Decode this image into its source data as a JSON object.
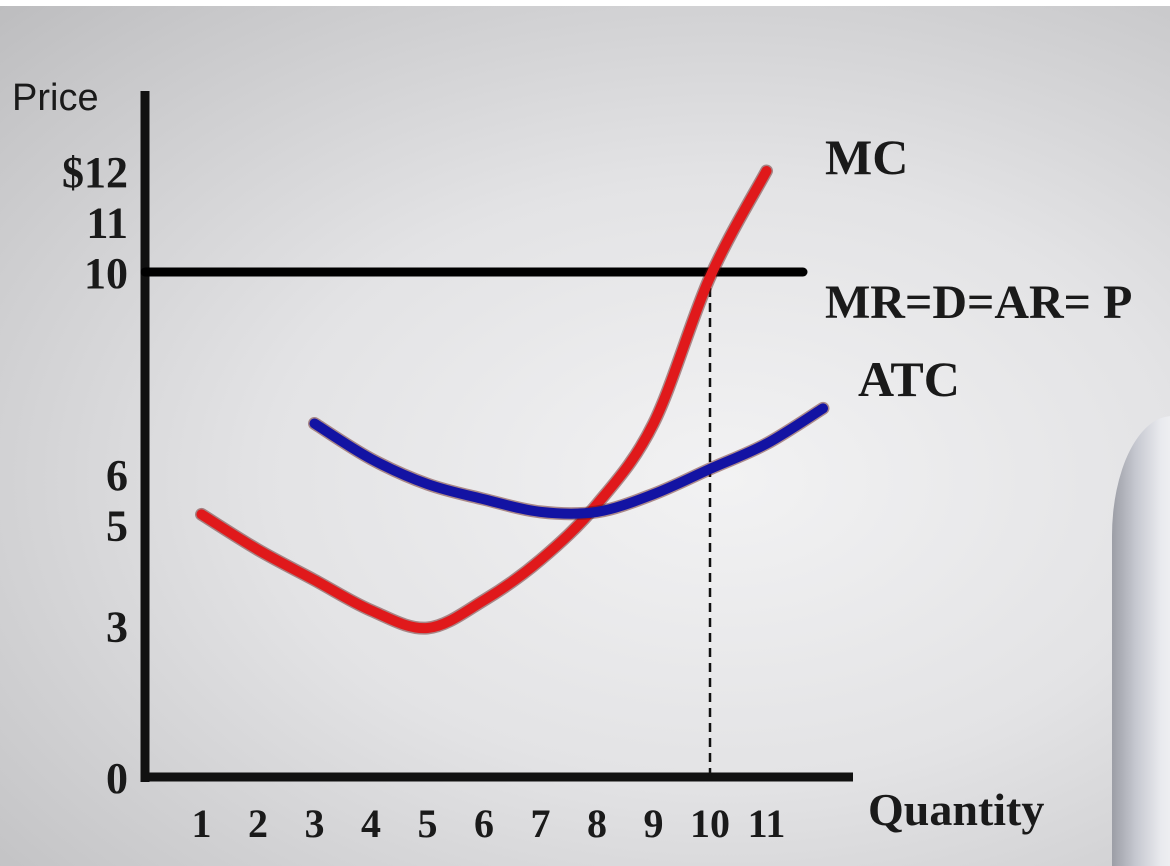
{
  "chart_data": {
    "type": "line",
    "ylabel": "Price",
    "xlabel": "Quantity",
    "x_ticks": [
      "1",
      "2",
      "3",
      "4",
      "5",
      "6",
      "7",
      "8",
      "9",
      "10",
      "11"
    ],
    "y_ticks": [
      {
        "value": 0,
        "label": "0"
      },
      {
        "value": 3,
        "label": "3"
      },
      {
        "value": 5,
        "label": "5"
      },
      {
        "value": 6,
        "label": "6"
      },
      {
        "value": 10,
        "label": "10"
      },
      {
        "value": 11,
        "label": "11"
      },
      {
        "value": 12,
        "label": "$12"
      }
    ],
    "series": [
      {
        "name": "MC",
        "color": "#e0191b",
        "points": [
          [
            1,
            5.2
          ],
          [
            2,
            4.5
          ],
          [
            3,
            3.9
          ],
          [
            4,
            3.3
          ],
          [
            5,
            2.95
          ],
          [
            6,
            3.5
          ],
          [
            7,
            4.3
          ],
          [
            8,
            5.4
          ],
          [
            9,
            7.0
          ],
          [
            10,
            9.9
          ],
          [
            11,
            12.0
          ]
        ]
      },
      {
        "name": "ATC",
        "color": "#1313a3",
        "points": [
          [
            3,
            7.0
          ],
          [
            4,
            6.3
          ],
          [
            5,
            5.8
          ],
          [
            6,
            5.5
          ],
          [
            7,
            5.25
          ],
          [
            8,
            5.25
          ],
          [
            9,
            5.6
          ],
          [
            10,
            6.1
          ],
          [
            11,
            6.6
          ],
          [
            12,
            7.3
          ]
        ]
      },
      {
        "name": "MR=D=AR= P",
        "color": "#000000",
        "points": [
          [
            0,
            10
          ],
          [
            12,
            10
          ]
        ]
      }
    ],
    "vertical_marker": {
      "x": 10,
      "from_y": 0,
      "to_y": 10,
      "style": "dashed"
    },
    "xlim": [
      0,
      12.3
    ],
    "ylim": [
      0,
      13
    ]
  }
}
